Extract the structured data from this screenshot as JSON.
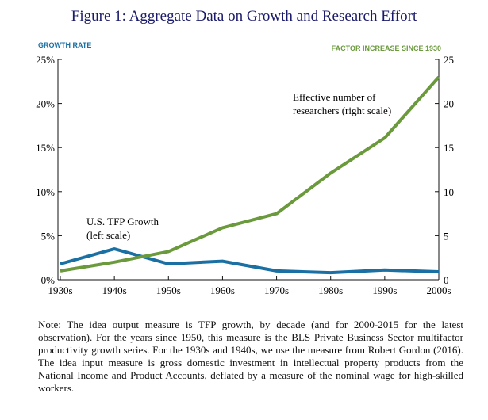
{
  "figure": {
    "title_prefix": "Figure 1:",
    "title_rest": " Aggregate Data on Growth and Research Effort",
    "note": "Note: The idea output measure is TFP growth, by decade (and for 2000-2015 for the latest observation). For the years since 1950, this measure is the BLS Private Business Sector multifactor productivity growth series. For the 1930s and 1940s, we use the measure from Robert Gordon (2016). The idea input measure is gross domestic investment in intellectual property products from the National Income and Product Accounts, deflated by a measure of the nominal wage for high-skilled workers."
  },
  "colors": {
    "title_blue": "#1a1a6a",
    "left_axis": "#1a6fa3",
    "right_axis": "#6a9a3c",
    "tfp_line": "#1a6fa3",
    "researchers_line": "#6a9a3c"
  },
  "chart_data": {
    "type": "line",
    "categories": [
      "1930s",
      "1940s",
      "1950s",
      "1960s",
      "1970s",
      "1980s",
      "1990s",
      "2000s"
    ],
    "left_axis": {
      "title": "GROWTH RATE",
      "ylim": [
        0,
        25
      ],
      "ticks": [
        0,
        5,
        10,
        15,
        20,
        25
      ],
      "tick_labels": [
        "0%",
        "5%",
        "10%",
        "15%",
        "20%",
        "25%"
      ]
    },
    "right_axis": {
      "title": "FACTOR INCREASE SINCE 1930",
      "ylim": [
        0,
        25
      ],
      "ticks": [
        0,
        5,
        10,
        15,
        20,
        25
      ],
      "tick_labels": [
        "0",
        "5",
        "10",
        "15",
        "20",
        "25"
      ]
    },
    "series": [
      {
        "name": "U.S. TFP Growth (left scale)",
        "axis": "left",
        "label_lines": [
          "U.S. TFP Growth",
          "(left scale)"
        ],
        "values": [
          1.8,
          3.5,
          1.8,
          2.1,
          1.0,
          0.8,
          1.1,
          0.9
        ]
      },
      {
        "name": "Effective number of researchers (right scale)",
        "axis": "right",
        "label_lines": [
          "Effective number of",
          "researchers (right scale)"
        ],
        "values": [
          1.0,
          2.0,
          3.2,
          5.9,
          7.5,
          12.1,
          16.1,
          23.0
        ]
      }
    ],
    "grid": false,
    "legend": "inline labels"
  }
}
